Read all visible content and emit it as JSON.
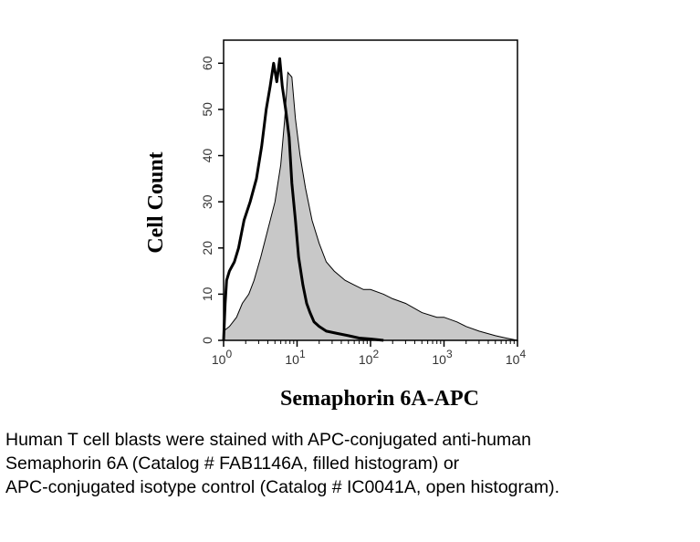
{
  "chart_data": {
    "type": "area",
    "xlabel": "Semaphorin 6A-APC",
    "ylabel": "Cell Count",
    "xscale": "log",
    "xlim": [
      1,
      10000
    ],
    "ylim": [
      0,
      65
    ],
    "x_ticks": [
      {
        "value": 1,
        "base": "10",
        "exp": "0"
      },
      {
        "value": 10,
        "base": "10",
        "exp": "1"
      },
      {
        "value": 100,
        "base": "10",
        "exp": "2"
      },
      {
        "value": 1000,
        "base": "10",
        "exp": "3"
      },
      {
        "value": 10000,
        "base": "10",
        "exp": "4"
      }
    ],
    "y_ticks": [
      "0",
      "10",
      "20",
      "30",
      "40",
      "50",
      "60"
    ],
    "grid": false,
    "series": [
      {
        "style": "filled",
        "color": "#c8c8c8",
        "points": [
          [
            1,
            2
          ],
          [
            1.2,
            3
          ],
          [
            1.5,
            5
          ],
          [
            1.8,
            8
          ],
          [
            2.2,
            10
          ],
          [
            2.6,
            13
          ],
          [
            3.2,
            18
          ],
          [
            4,
            24
          ],
          [
            5,
            30
          ],
          [
            6,
            38
          ],
          [
            6.8,
            48
          ],
          [
            7.5,
            58
          ],
          [
            8.5,
            57
          ],
          [
            9.5,
            48
          ],
          [
            11,
            40
          ],
          [
            13,
            33
          ],
          [
            16,
            26
          ],
          [
            20,
            21
          ],
          [
            25,
            17
          ],
          [
            32,
            15
          ],
          [
            45,
            13
          ],
          [
            60,
            12
          ],
          [
            80,
            11
          ],
          [
            100,
            11
          ],
          [
            150,
            10
          ],
          [
            200,
            9
          ],
          [
            300,
            8
          ],
          [
            500,
            6
          ],
          [
            800,
            5
          ],
          [
            1000,
            5
          ],
          [
            1500,
            4
          ],
          [
            2000,
            3
          ],
          [
            3000,
            2
          ],
          [
            5000,
            1
          ],
          [
            7000,
            0.5
          ],
          [
            10000,
            0
          ]
        ]
      },
      {
        "style": "open",
        "color": "#000000",
        "points": [
          [
            1,
            0
          ],
          [
            1.05,
            8
          ],
          [
            1.1,
            13
          ],
          [
            1.2,
            15
          ],
          [
            1.4,
            17
          ],
          [
            1.6,
            20
          ],
          [
            1.9,
            26
          ],
          [
            2.3,
            30
          ],
          [
            2.8,
            35
          ],
          [
            3.3,
            42
          ],
          [
            3.8,
            50
          ],
          [
            4.3,
            55
          ],
          [
            4.8,
            60
          ],
          [
            5.3,
            56
          ],
          [
            5.8,
            61
          ],
          [
            6.3,
            55
          ],
          [
            7,
            50
          ],
          [
            7.8,
            44
          ],
          [
            8.5,
            34
          ],
          [
            9.5,
            26
          ],
          [
            10.5,
            18
          ],
          [
            12,
            12
          ],
          [
            13.5,
            8
          ],
          [
            15,
            6
          ],
          [
            17,
            4
          ],
          [
            20,
            3
          ],
          [
            25,
            2
          ],
          [
            35,
            1.5
          ],
          [
            50,
            1
          ],
          [
            70,
            0.5
          ],
          [
            100,
            0.3
          ],
          [
            150,
            0
          ]
        ]
      }
    ]
  },
  "caption": [
    "Human T cell blasts were stained with APC-conjugated anti-human",
    "Semaphorin 6A (Catalog # FAB1146A, filled histogram) or",
    "APC-conjugated isotype control (Catalog # IC0041A, open histogram)."
  ]
}
